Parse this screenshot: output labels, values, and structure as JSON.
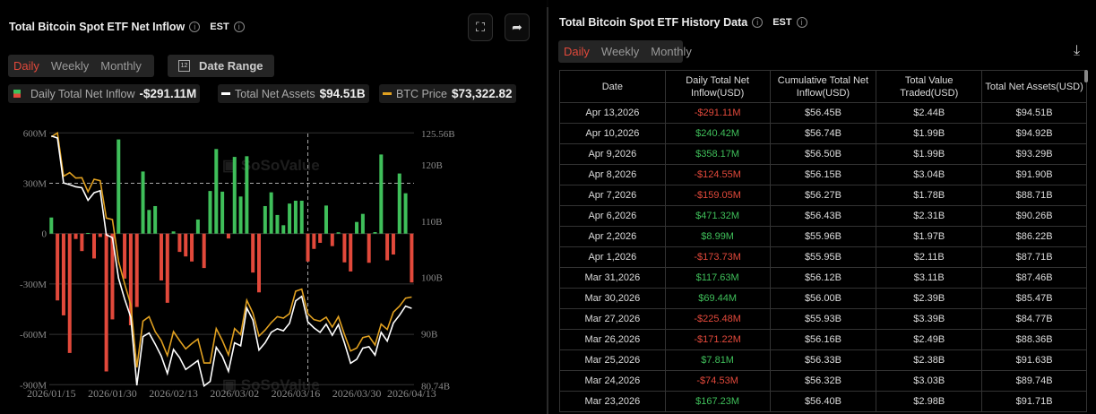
{
  "left": {
    "title": "Total Bitcoin Spot ETF Net Inflow",
    "timezone": "EST",
    "period_tabs": [
      "Daily",
      "Weekly",
      "Monthly"
    ],
    "active_tab": "Daily",
    "date_range_label": "Date Range",
    "calendar_day": "12",
    "legend": [
      {
        "label": "Daily Total Net Inflow",
        "value": "-$291.11M"
      },
      {
        "label": "Total Net Assets",
        "value": "$94.51B"
      },
      {
        "label": "BTC Price",
        "value": "$73,322.82"
      }
    ],
    "watermark": "SoSoValue"
  },
  "right": {
    "title": "Total Bitcoin Spot ETF History Data",
    "timezone": "EST",
    "period_tabs": [
      "Daily",
      "Weekly",
      "Monthly"
    ],
    "active_tab": "Daily",
    "columns": [
      "Date",
      "Daily Total Net Inflow(USD)",
      "Cumulative Total Net Inflow(USD)",
      "Total Value Traded(USD)",
      "Total Net Assets(USD)"
    ],
    "rows": [
      [
        "Apr 13,2026",
        "-$291.11M",
        "$56.45B",
        "$2.44B",
        "$94.51B"
      ],
      [
        "Apr 10,2026",
        "$240.42M",
        "$56.74B",
        "$1.99B",
        "$94.92B"
      ],
      [
        "Apr 9,2026",
        "$358.17M",
        "$56.50B",
        "$1.99B",
        "$93.29B"
      ],
      [
        "Apr 8,2026",
        "-$124.55M",
        "$56.15B",
        "$3.04B",
        "$91.90B"
      ],
      [
        "Apr 7,2026",
        "-$159.05M",
        "$56.27B",
        "$1.78B",
        "$88.71B"
      ],
      [
        "Apr 6,2026",
        "$471.32M",
        "$56.43B",
        "$2.31B",
        "$90.26B"
      ],
      [
        "Apr 2,2026",
        "$8.99M",
        "$55.96B",
        "$1.97B",
        "$86.22B"
      ],
      [
        "Apr 1,2026",
        "-$173.73M",
        "$55.95B",
        "$2.11B",
        "$87.71B"
      ],
      [
        "Mar 31,2026",
        "$117.63M",
        "$56.12B",
        "$3.11B",
        "$87.46B"
      ],
      [
        "Mar 30,2026",
        "$69.44M",
        "$56.00B",
        "$2.39B",
        "$85.47B"
      ],
      [
        "Mar 27,2026",
        "-$225.48M",
        "$55.93B",
        "$3.39B",
        "$84.77B"
      ],
      [
        "Mar 26,2026",
        "-$171.22M",
        "$56.16B",
        "$2.49B",
        "$88.36B"
      ],
      [
        "Mar 25,2026",
        "$7.81M",
        "$56.33B",
        "$2.38B",
        "$91.63B"
      ],
      [
        "Mar 24,2026",
        "-$74.53M",
        "$56.32B",
        "$3.03B",
        "$89.74B"
      ],
      [
        "Mar 23,2026",
        "$167.23M",
        "$56.40B",
        "$2.98B",
        "$91.71B"
      ]
    ]
  },
  "colors": {
    "inflow_pos": "#3fbf5a",
    "inflow_neg": "#e2493b",
    "assets": "#ffffff",
    "btc": "#e0a020",
    "active_tab": "#e2493b"
  },
  "chart_data": {
    "type": "bar+line",
    "x_tick_labels": [
      "2026/01/15",
      "2026/01/30",
      "2026/02/13",
      "2026/03/02",
      "2026/03/16",
      "2026/03/30",
      "2026/04/13"
    ],
    "left_axis": {
      "ticks": [
        "600M",
        "300M",
        "0",
        "-300M",
        "-600M",
        "-900M"
      ],
      "range_millions": [
        -900,
        600
      ]
    },
    "right_axis": {
      "ticks": [
        "125.56B",
        "120B",
        "110B",
        "100B",
        "90B",
        "80.74B"
      ],
      "range_billions": [
        80.74,
        125.56
      ]
    },
    "btc_hidden_axis_range_usd": [
      60000,
      98000
    ],
    "crosshair_date": "2026/03/18",
    "grid": true,
    "dates": [
      "2026/01/15",
      "2026/01/16",
      "2026/01/20",
      "2026/01/21",
      "2026/01/22",
      "2026/01/23",
      "2026/01/26",
      "2026/01/27",
      "2026/01/28",
      "2026/01/29",
      "2026/01/30",
      "2026/02/02",
      "2026/02/03",
      "2026/02/04",
      "2026/02/05",
      "2026/02/06",
      "2026/02/09",
      "2026/02/10",
      "2026/02/11",
      "2026/02/12",
      "2026/02/13",
      "2026/02/17",
      "2026/02/18",
      "2026/02/19",
      "2026/02/20",
      "2026/02/23",
      "2026/02/24",
      "2026/02/25",
      "2026/02/26",
      "2026/02/27",
      "2026/03/02",
      "2026/03/03",
      "2026/03/04",
      "2026/03/05",
      "2026/03/06",
      "2026/03/09",
      "2026/03/10",
      "2026/03/11",
      "2026/03/12",
      "2026/03/13",
      "2026/03/16",
      "2026/03/17",
      "2026/03/18",
      "2026/03/19",
      "2026/03/20",
      "2026/03/23",
      "2026/03/24",
      "2026/03/25",
      "2026/03/26",
      "2026/03/27",
      "2026/03/30",
      "2026/03/31",
      "2026/04/01",
      "2026/04/02",
      "2026/04/06",
      "2026/04/07",
      "2026/04/08",
      "2026/04/09",
      "2026/04/10",
      "2026/04/13"
    ],
    "series": [
      {
        "name": "Daily Total Net Inflow",
        "unit": "M USD",
        "values": [
          96,
          -398,
          -487,
          -711,
          -32,
          -104,
          4,
          -148,
          -20,
          -821,
          -511,
          561,
          -268,
          -546,
          -437,
          370,
          141,
          164,
          -279,
          -412,
          13,
          -109,
          -136,
          -166,
          84,
          -205,
          254,
          504,
          250,
          -29,
          457,
          221,
          461,
          -232,
          -350,
          164,
          246,
          111,
          50,
          179,
          196,
          196,
          -166,
          -91,
          -55,
          167.23,
          -74.53,
          7.81,
          -171.22,
          -225.48,
          69.44,
          117.63,
          -173.73,
          8.99,
          471.32,
          -159.05,
          -124.55,
          358.17,
          240.42,
          -291.11
        ]
      },
      {
        "name": "Total Net Assets",
        "unit": "B USD",
        "values": [
          125.13,
          124.76,
          116.79,
          116.47,
          116.1,
          115.94,
          113.71,
          115.04,
          115.41,
          107.59,
          107.06,
          99.88,
          96.16,
          92.97,
          80.84,
          89.5,
          90.14,
          88.18,
          86.05,
          82.96,
          87.22,
          85.78,
          83.66,
          84.45,
          85.25,
          80.74,
          81.54,
          87.6,
          86.0,
          83.35,
          88.4,
          87.87,
          94.57,
          92.44,
          87.12,
          88.4,
          90.26,
          90.9,
          90.53,
          91.86,
          95.85,
          96.65,
          92.12,
          91.06,
          90.26,
          91.71,
          89.74,
          91.63,
          88.36,
          84.77,
          85.47,
          87.46,
          87.71,
          86.22,
          90.26,
          88.71,
          91.9,
          93.29,
          94.92,
          94.51
        ]
      },
      {
        "name": "BTC Price",
        "unit": "USD",
        "values": [
          97504,
          98090,
          91554,
          92095,
          91283,
          91328,
          89210,
          91103,
          90877,
          85243,
          85017,
          78706,
          75325,
          72169,
          62703,
          69690,
          70366,
          68112,
          66760,
          64506,
          68112,
          66760,
          65498,
          66309,
          66985,
          63379,
          63379,
          68563,
          66760,
          64596,
          68563,
          67661,
          72845,
          70907,
          67436,
          68338,
          69465,
          70366,
          70141,
          70817,
          74198,
          74514,
          70817,
          69916,
          69690,
          70276,
          68789,
          70366,
          67661,
          65182,
          65633,
          67211,
          67436,
          66084,
          69239,
          68428,
          71043,
          71944,
          73161,
          73322.82
        ]
      }
    ]
  }
}
